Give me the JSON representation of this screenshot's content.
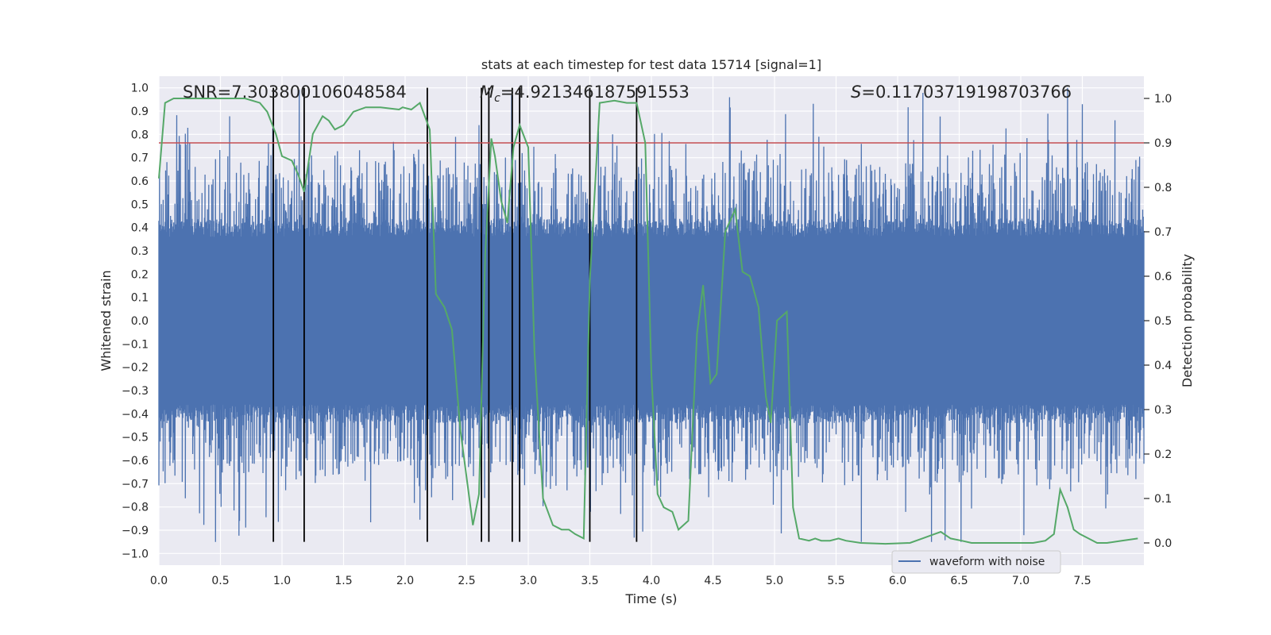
{
  "chart_data": {
    "type": "line",
    "title": "stats at each timestep for test data 15714 [signal=1]",
    "xlabel": "Time (s)",
    "ylabel": "Whitened strain",
    "ylabel_right": "Detection probability",
    "xlim": [
      0,
      8
    ],
    "ylim": [
      -1.05,
      1.05
    ],
    "ylim_right": [
      -0.05,
      1.05
    ],
    "x_ticks": [
      0.0,
      0.5,
      1.0,
      1.5,
      2.0,
      2.5,
      3.0,
      3.5,
      4.0,
      4.5,
      5.0,
      5.5,
      6.0,
      6.5,
      7.0,
      7.5
    ],
    "x_tick_labels": [
      "0.0",
      "0.5",
      "1.0",
      "1.5",
      "2.0",
      "2.5",
      "3.0",
      "3.5",
      "4.0",
      "4.5",
      "5.0",
      "5.5",
      "6.0",
      "6.5",
      "7.0",
      "7.5"
    ],
    "y_ticks": [
      1.0,
      0.9,
      0.8,
      0.7,
      0.6,
      0.5,
      0.4,
      0.3,
      0.2,
      0.1,
      0.0,
      -0.1,
      -0.2,
      -0.3,
      -0.4,
      -0.5,
      -0.6,
      -0.7,
      -0.8,
      -0.9,
      -1.0
    ],
    "y_tick_labels": [
      "1.0",
      "0.9",
      "0.8",
      "0.7",
      "0.6",
      "0.5",
      "0.4",
      "0.3",
      "0.2",
      "0.1",
      "0.0",
      "-0.1",
      "-0.2",
      "-0.3",
      "-0.4",
      "-0.5",
      "-0.6",
      "-0.7",
      "-0.8",
      "-0.9",
      "-1.0"
    ],
    "y_right_ticks": [
      1.0,
      0.9,
      0.8,
      0.7,
      0.6,
      0.5,
      0.4,
      0.3,
      0.2,
      0.1,
      0.0
    ],
    "y_right_tick_labels": [
      "1.0",
      "0.9",
      "0.8",
      "0.7",
      "0.6",
      "0.5",
      "0.4",
      "0.3",
      "0.2",
      "0.1",
      "0.0"
    ],
    "annotations": {
      "snr": "SNR=7.303800106048584",
      "mc_symbol": "M",
      "mc_subscript": "c",
      "mc_value": "=4.921346187591553",
      "s_symbol": "S",
      "s_value": "=0.11703719198703766"
    },
    "legend": {
      "entries": [
        "waveform with noise"
      ],
      "placement": "lower-right"
    },
    "grid": true,
    "threshold_line": {
      "axis": "right",
      "value": 0.9,
      "color": "#c44e52"
    },
    "vertical_lines": {
      "x": [
        0.93,
        1.18,
        2.18,
        2.62,
        2.68,
        2.87,
        2.93,
        3.5,
        3.88
      ],
      "ymin": -0.95,
      "ymax": 1.0,
      "color": "#000000"
    },
    "series": [
      {
        "name": "waveform with noise",
        "axis": "left",
        "color": "#4c72b0",
        "kind": "noise-trace",
        "typical_amplitude": 0.4,
        "peak_max": 1.0,
        "peak_min": -0.95
      },
      {
        "axis": "right",
        "color": "#55a868",
        "x": [
          0.0,
          0.05,
          0.12,
          0.3,
          0.5,
          0.7,
          0.82,
          0.88,
          0.95,
          1.0,
          1.08,
          1.13,
          1.18,
          1.25,
          1.33,
          1.38,
          1.43,
          1.5,
          1.58,
          1.68,
          1.8,
          1.95,
          1.98,
          2.05,
          2.12,
          2.2,
          2.25,
          2.32,
          2.38,
          2.45,
          2.55,
          2.6,
          2.65,
          2.7,
          2.73,
          2.78,
          2.83,
          2.88,
          2.93,
          3.0,
          3.05,
          3.12,
          3.2,
          3.27,
          3.33,
          3.38,
          3.45,
          3.5,
          3.58,
          3.7,
          3.8,
          3.88,
          3.95,
          4.0,
          4.05,
          4.1,
          4.17,
          4.22,
          4.3,
          4.37,
          4.42,
          4.48,
          4.53,
          4.6,
          4.68,
          4.74,
          4.8,
          4.87,
          4.93,
          4.97,
          5.02,
          5.1,
          5.15,
          5.2,
          5.28,
          5.33,
          5.38,
          5.45,
          5.52,
          5.58,
          5.7,
          5.9,
          6.1,
          6.2,
          6.3,
          6.35,
          6.43,
          6.52,
          6.6,
          6.7,
          6.9,
          7.1,
          7.2,
          7.27,
          7.32,
          7.38,
          7.43,
          7.48,
          7.55,
          7.62,
          7.7,
          7.82,
          7.95
        ],
        "y": [
          0.82,
          0.99,
          1.0,
          1.0,
          1.0,
          1.0,
          0.99,
          0.97,
          0.92,
          0.87,
          0.86,
          0.83,
          0.79,
          0.92,
          0.96,
          0.95,
          0.93,
          0.94,
          0.97,
          0.98,
          0.98,
          0.975,
          0.98,
          0.975,
          0.99,
          0.93,
          0.56,
          0.53,
          0.48,
          0.25,
          0.04,
          0.11,
          0.65,
          0.91,
          0.87,
          0.77,
          0.72,
          0.89,
          0.94,
          0.89,
          0.43,
          0.1,
          0.04,
          0.03,
          0.03,
          0.02,
          0.01,
          0.59,
          0.99,
          0.995,
          0.99,
          0.99,
          0.9,
          0.38,
          0.11,
          0.08,
          0.07,
          0.03,
          0.05,
          0.47,
          0.58,
          0.36,
          0.38,
          0.7,
          0.75,
          0.61,
          0.6,
          0.53,
          0.33,
          0.27,
          0.5,
          0.52,
          0.08,
          0.01,
          0.005,
          0.01,
          0.005,
          0.005,
          0.01,
          0.005,
          0.0,
          -0.002,
          0.0,
          0.01,
          0.02,
          0.025,
          0.01,
          0.005,
          0.0,
          0.0,
          0.0,
          0.0,
          0.005,
          0.02,
          0.12,
          0.08,
          0.03,
          0.02,
          0.01,
          0.0,
          0.0,
          0.005,
          0.01
        ]
      }
    ]
  }
}
